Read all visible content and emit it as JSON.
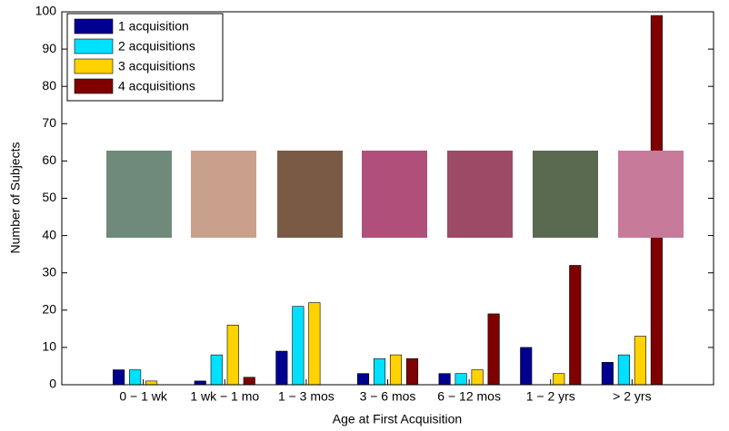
{
  "chart_data": {
    "type": "bar",
    "x_label": "Age at First Acquisition",
    "y_label": "Number of Subjects",
    "categories": [
      "0 − 1 wk",
      "1 wk − 1 mo",
      "1 − 3 mos",
      "3 − 6 mos",
      "6 − 12 mos",
      "1 − 2 yrs",
      "> 2 yrs"
    ],
    "series": [
      {
        "name": "1 acquisition",
        "color": "#000090",
        "values": [
          4,
          1,
          9,
          3,
          3,
          10,
          6
        ]
      },
      {
        "name": "2 acquisitions",
        "color": "#00e0ff",
        "values": [
          4,
          8,
          21,
          7,
          3,
          0,
          8
        ]
      },
      {
        "name": "3 acquisitions",
        "color": "#ffd200",
        "values": [
          1,
          16,
          22,
          8,
          4,
          3,
          13
        ]
      },
      {
        "name": "4 acquisitions",
        "color": "#800000",
        "values": [
          0,
          2,
          0,
          7,
          19,
          32,
          99
        ]
      }
    ],
    "ylim": [
      0,
      100
    ],
    "yticks": [
      0,
      10,
      20,
      30,
      40,
      50,
      60,
      70,
      80,
      90,
      100
    ],
    "legend": "upper-left"
  }
}
